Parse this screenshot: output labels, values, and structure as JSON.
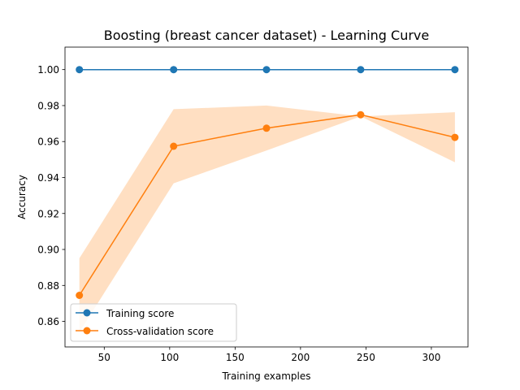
{
  "chart_data": {
    "type": "line",
    "title": "Boosting (breast cancer dataset) - Learning Curve",
    "xlabel": "Training examples",
    "ylabel": "Accuracy",
    "xlim": [
      20,
      328
    ],
    "ylim": [
      0.8458,
      1.0125
    ],
    "xticks": [
      50,
      100,
      150,
      200,
      250,
      300
    ],
    "yticks": [
      0.86,
      0.88,
      0.9,
      0.92,
      0.94,
      0.96,
      0.98,
      1.0
    ],
    "xtick_labels": [
      "50",
      "100",
      "150",
      "200",
      "250",
      "300"
    ],
    "ytick_labels": [
      "0.86",
      "0.88",
      "0.90",
      "0.92",
      "0.94",
      "0.96",
      "0.98",
      "1.00"
    ],
    "x": [
      31,
      103,
      174,
      246,
      318
    ],
    "series": [
      {
        "name": "Training score",
        "color": "#1f77b4",
        "values": [
          1.0,
          1.0,
          1.0,
          1.0,
          1.0
        ],
        "band_lower": [
          1.0,
          1.0,
          1.0,
          1.0,
          1.0
        ],
        "band_upper": [
          1.0,
          1.0,
          1.0,
          1.0,
          1.0
        ]
      },
      {
        "name": "Cross-validation score",
        "color": "#ff7f0e",
        "band_color": "#ffdfc2",
        "values": [
          0.8745,
          0.9574,
          0.9674,
          0.9749,
          0.9623
        ],
        "band_lower": [
          0.854,
          0.9368,
          0.955,
          0.974,
          0.9485
        ],
        "band_upper": [
          0.8951,
          0.978,
          0.98,
          0.974,
          0.9763
        ]
      }
    ],
    "grid": false,
    "legend": "lower-left"
  }
}
